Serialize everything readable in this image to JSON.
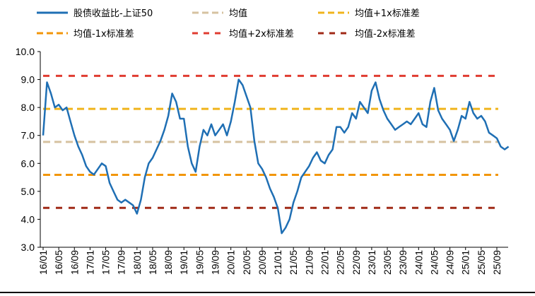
{
  "chart_data": {
    "type": "line",
    "title": "",
    "xlabel": "",
    "ylabel": "",
    "ylim": [
      3.0,
      10.0
    ],
    "y_ticks": [
      "10.0",
      "9.0",
      "8.0",
      "7.0",
      "6.0",
      "5.0",
      "4.0",
      "3.0"
    ],
    "x_ticks": [
      "16/01",
      "16/05",
      "16/09",
      "17/01",
      "17/05",
      "17/09",
      "18/01",
      "18/05",
      "18/09",
      "19/01",
      "19/05",
      "19/09",
      "20/01",
      "20/05",
      "20/09",
      "21/01",
      "21/05",
      "21/09",
      "22/01",
      "22/05",
      "22/09",
      "23/01",
      "23/05",
      "23/09",
      "24/01",
      "24/05",
      "24/09",
      "25/01",
      "25/05",
      "25/09"
    ],
    "grid": false,
    "legend_position": "top",
    "series": [
      {
        "name": "股债收益比-上证50",
        "color": "#1f6fb4",
        "points": [
          [
            "16/01",
            7.0
          ],
          [
            "16/02",
            8.9
          ],
          [
            "16/03",
            8.5
          ],
          [
            "16/04",
            8.0
          ],
          [
            "16/05",
            8.1
          ],
          [
            "16/06",
            7.9
          ],
          [
            "16/07",
            8.0
          ],
          [
            "16/08",
            7.5
          ],
          [
            "16/09",
            7.0
          ],
          [
            "16/10",
            6.6
          ],
          [
            "16/11",
            6.3
          ],
          [
            "16/12",
            5.9
          ],
          [
            "17/01",
            5.7
          ],
          [
            "17/02",
            5.6
          ],
          [
            "17/03",
            5.8
          ],
          [
            "17/04",
            6.0
          ],
          [
            "17/05",
            5.9
          ],
          [
            "17/06",
            5.3
          ],
          [
            "17/07",
            5.0
          ],
          [
            "17/08",
            4.7
          ],
          [
            "17/09",
            4.6
          ],
          [
            "17/10",
            4.7
          ],
          [
            "17/11",
            4.6
          ],
          [
            "17/12",
            4.5
          ],
          [
            "18/01",
            4.2
          ],
          [
            "18/02",
            4.7
          ],
          [
            "18/03",
            5.5
          ],
          [
            "18/04",
            6.0
          ],
          [
            "18/05",
            6.2
          ],
          [
            "18/06",
            6.5
          ],
          [
            "18/07",
            6.8
          ],
          [
            "18/08",
            7.2
          ],
          [
            "18/09",
            7.7
          ],
          [
            "18/10",
            8.5
          ],
          [
            "18/11",
            8.2
          ],
          [
            "18/12",
            7.6
          ],
          [
            "19/01",
            7.6
          ],
          [
            "19/02",
            6.6
          ],
          [
            "19/03",
            6.0
          ],
          [
            "19/04",
            5.7
          ],
          [
            "19/05",
            6.6
          ],
          [
            "19/06",
            7.2
          ],
          [
            "19/07",
            7.0
          ],
          [
            "19/08",
            7.4
          ],
          [
            "19/09",
            7.0
          ],
          [
            "19/10",
            7.2
          ],
          [
            "19/11",
            7.4
          ],
          [
            "19/12",
            7.0
          ],
          [
            "20/01",
            7.5
          ],
          [
            "20/02",
            8.2
          ],
          [
            "20/03",
            9.0
          ],
          [
            "20/04",
            8.8
          ],
          [
            "20/05",
            8.4
          ],
          [
            "20/06",
            8.0
          ],
          [
            "20/07",
            6.8
          ],
          [
            "20/08",
            6.0
          ],
          [
            "20/09",
            5.8
          ],
          [
            "20/10",
            5.5
          ],
          [
            "20/11",
            5.1
          ],
          [
            "20/12",
            4.8
          ],
          [
            "21/01",
            4.4
          ],
          [
            "21/02",
            3.5
          ],
          [
            "21/03",
            3.7
          ],
          [
            "21/04",
            4.0
          ],
          [
            "21/05",
            4.6
          ],
          [
            "21/06",
            5.0
          ],
          [
            "21/07",
            5.5
          ],
          [
            "21/08",
            5.7
          ],
          [
            "21/09",
            5.9
          ],
          [
            "21/10",
            6.2
          ],
          [
            "21/11",
            6.4
          ],
          [
            "21/12",
            6.1
          ],
          [
            "22/01",
            6.0
          ],
          [
            "22/02",
            6.3
          ],
          [
            "22/03",
            6.5
          ],
          [
            "22/04",
            7.3
          ],
          [
            "22/05",
            7.3
          ],
          [
            "22/06",
            7.1
          ],
          [
            "22/07",
            7.3
          ],
          [
            "22/08",
            7.8
          ],
          [
            "22/09",
            7.6
          ],
          [
            "22/10",
            8.2
          ],
          [
            "22/11",
            8.0
          ],
          [
            "22/12",
            7.8
          ],
          [
            "23/01",
            8.6
          ],
          [
            "23/02",
            8.9
          ],
          [
            "23/03",
            8.3
          ],
          [
            "23/04",
            7.9
          ],
          [
            "23/05",
            7.6
          ],
          [
            "23/06",
            7.4
          ],
          [
            "23/07",
            7.2
          ],
          [
            "23/08",
            7.3
          ],
          [
            "23/09",
            7.4
          ],
          [
            "23/10",
            7.5
          ],
          [
            "23/11",
            7.4
          ],
          [
            "23/12",
            7.6
          ],
          [
            "24/01",
            7.8
          ],
          [
            "24/02",
            7.4
          ],
          [
            "24/03",
            7.3
          ],
          [
            "24/04",
            8.2
          ],
          [
            "24/05",
            8.7
          ],
          [
            "24/06",
            7.9
          ],
          [
            "24/07",
            7.6
          ],
          [
            "24/08",
            7.4
          ],
          [
            "24/09",
            7.2
          ],
          [
            "24/10",
            6.8
          ],
          [
            "24/11",
            7.2
          ],
          [
            "24/12",
            7.7
          ],
          [
            "25/01",
            7.6
          ],
          [
            "25/02",
            8.2
          ],
          [
            "25/03",
            7.8
          ],
          [
            "25/04",
            7.6
          ],
          [
            "25/05",
            7.7
          ],
          [
            "25/06",
            7.5
          ],
          [
            "25/07",
            7.1
          ],
          [
            "25/08",
            7.0
          ],
          [
            "25/09",
            6.9
          ],
          [
            "25/10",
            6.6
          ],
          [
            "25/11",
            6.5
          ],
          [
            "25/12",
            6.6
          ]
        ]
      },
      {
        "name": "均值",
        "type": "hline",
        "value": 6.77,
        "color": "#d6c2a0",
        "dash": "long"
      },
      {
        "name": "均值+1x标准差",
        "type": "hline",
        "value": 7.95,
        "color": "#f0b41c",
        "dash": "long"
      },
      {
        "name": "均值-1x标准差",
        "type": "hline",
        "value": 5.59,
        "color": "#f2960a",
        "dash": "long"
      },
      {
        "name": "均值+2x标准差",
        "type": "hline",
        "value": 9.13,
        "color": "#e03c31",
        "dash": "short"
      },
      {
        "name": "均值-2x标准差",
        "type": "hline",
        "value": 4.41,
        "color": "#a02a17",
        "dash": "short"
      }
    ]
  }
}
